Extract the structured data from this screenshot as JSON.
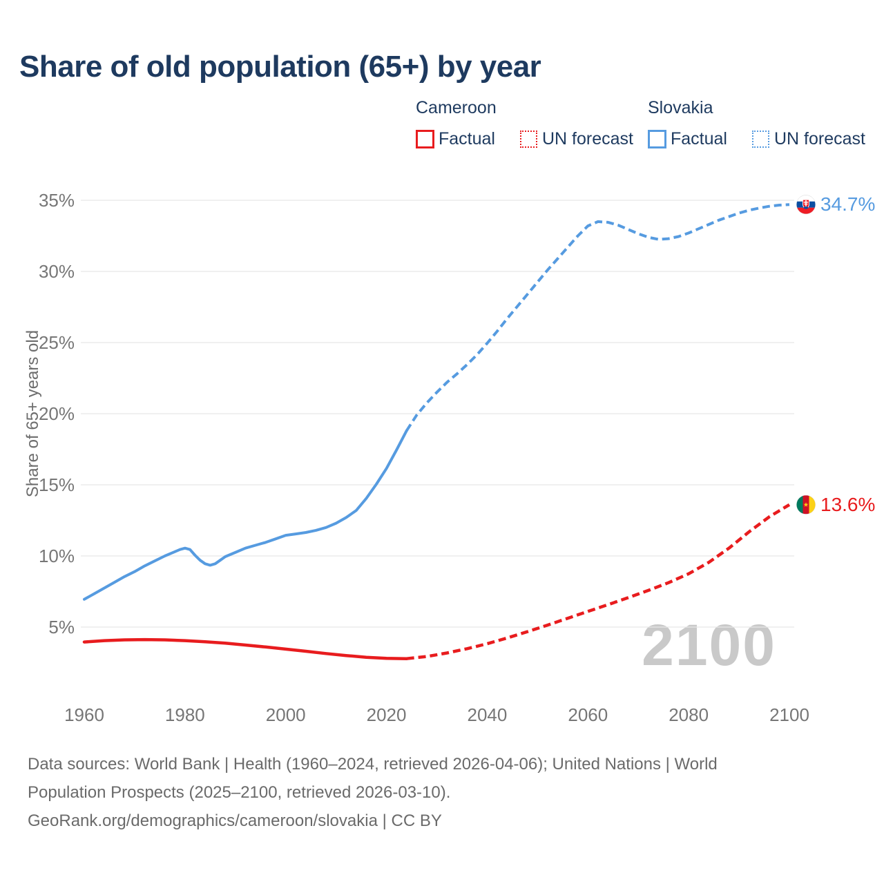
{
  "title": "Share of old population (65+) by year",
  "colors": {
    "navy": "#1e3a5f",
    "cameroon": "#e81c1e",
    "slovakia": "#569be0",
    "gridline": "#e8e8e8",
    "watermark": "#c9c9c9",
    "flag_slovakia": {
      "white": "#ffffff",
      "blue": "#0b4ea2",
      "red": "#ee1c25"
    },
    "flag_cameroon": {
      "green": "#007a5e",
      "red": "#ce1126",
      "yellow": "#fcd116"
    }
  },
  "legend": {
    "groups": [
      {
        "country": "Cameroon",
        "items": [
          {
            "label": "Factual",
            "style": "solid"
          },
          {
            "label": "UN forecast",
            "style": "dotted"
          }
        ]
      },
      {
        "country": "Slovakia",
        "items": [
          {
            "label": "Factual",
            "style": "solid"
          },
          {
            "label": "UN forecast",
            "style": "dotted"
          }
        ]
      }
    ]
  },
  "chart_data": {
    "type": "line",
    "title": "Share of old population (65+) by year",
    "xlabel": "",
    "ylabel": "Share of 65+ years old",
    "x_ticks": [
      1960,
      1980,
      2000,
      2020,
      2040,
      2060,
      2080,
      2100
    ],
    "y_ticks": [
      {
        "value": 5,
        "label": "5%"
      },
      {
        "value": 10,
        "label": "10%"
      },
      {
        "value": 15,
        "label": "15%"
      },
      {
        "value": 20,
        "label": "20%"
      },
      {
        "value": 25,
        "label": "25%"
      },
      {
        "value": 30,
        "label": "30%"
      },
      {
        "value": 35,
        "label": "35%"
      }
    ],
    "xlim": [
      1955,
      2105
    ],
    "ylim": [
      2.5,
      36
    ],
    "grid": "horizontal",
    "legend_position": "top-right",
    "watermark": "2100",
    "series": [
      {
        "name": "Cameroon Factual",
        "country": "cameroon",
        "dash": false,
        "points": [
          [
            1960,
            3.95
          ],
          [
            1964,
            4.05
          ],
          [
            1968,
            4.1
          ],
          [
            1972,
            4.12
          ],
          [
            1976,
            4.1
          ],
          [
            1980,
            4.05
          ],
          [
            1984,
            3.97
          ],
          [
            1988,
            3.87
          ],
          [
            1992,
            3.74
          ],
          [
            1996,
            3.6
          ],
          [
            2000,
            3.45
          ],
          [
            2004,
            3.3
          ],
          [
            2008,
            3.14
          ],
          [
            2012,
            3.0
          ],
          [
            2016,
            2.88
          ],
          [
            2020,
            2.8
          ],
          [
            2024,
            2.78
          ]
        ]
      },
      {
        "name": "Cameroon UN forecast",
        "country": "cameroon",
        "dash": true,
        "points": [
          [
            2024,
            2.78
          ],
          [
            2028,
            2.93
          ],
          [
            2032,
            3.18
          ],
          [
            2036,
            3.48
          ],
          [
            2040,
            3.83
          ],
          [
            2044,
            4.24
          ],
          [
            2048,
            4.68
          ],
          [
            2052,
            5.14
          ],
          [
            2056,
            5.62
          ],
          [
            2060,
            6.1
          ],
          [
            2064,
            6.58
          ],
          [
            2068,
            7.07
          ],
          [
            2072,
            7.58
          ],
          [
            2076,
            8.12
          ],
          [
            2080,
            8.75
          ],
          [
            2084,
            9.55
          ],
          [
            2088,
            10.55
          ],
          [
            2092,
            11.7
          ],
          [
            2096,
            12.75
          ],
          [
            2100,
            13.6
          ]
        ]
      },
      {
        "name": "Slovakia Factual",
        "country": "slovakia",
        "dash": false,
        "points": [
          [
            1960,
            6.95
          ],
          [
            1962,
            7.35
          ],
          [
            1964,
            7.75
          ],
          [
            1966,
            8.15
          ],
          [
            1968,
            8.55
          ],
          [
            1970,
            8.9
          ],
          [
            1972,
            9.3
          ],
          [
            1974,
            9.65
          ],
          [
            1976,
            10.0
          ],
          [
            1978,
            10.3
          ],
          [
            1979,
            10.45
          ],
          [
            1980,
            10.55
          ],
          [
            1981,
            10.45
          ],
          [
            1982,
            10.05
          ],
          [
            1983,
            9.7
          ],
          [
            1984,
            9.45
          ],
          [
            1985,
            9.35
          ],
          [
            1986,
            9.45
          ],
          [
            1987,
            9.7
          ],
          [
            1988,
            9.95
          ],
          [
            1990,
            10.25
          ],
          [
            1992,
            10.55
          ],
          [
            1994,
            10.75
          ],
          [
            1996,
            10.95
          ],
          [
            1998,
            11.2
          ],
          [
            2000,
            11.45
          ],
          [
            2002,
            11.55
          ],
          [
            2004,
            11.65
          ],
          [
            2006,
            11.8
          ],
          [
            2008,
            12.0
          ],
          [
            2010,
            12.3
          ],
          [
            2012,
            12.7
          ],
          [
            2014,
            13.2
          ],
          [
            2016,
            14.05
          ],
          [
            2018,
            15.05
          ],
          [
            2020,
            16.15
          ],
          [
            2022,
            17.45
          ],
          [
            2024,
            18.8
          ]
        ]
      },
      {
        "name": "Slovakia UN forecast",
        "country": "slovakia",
        "dash": true,
        "points": [
          [
            2024,
            18.8
          ],
          [
            2026,
            19.9
          ],
          [
            2028,
            20.75
          ],
          [
            2030,
            21.5
          ],
          [
            2032,
            22.2
          ],
          [
            2034,
            22.8
          ],
          [
            2036,
            23.45
          ],
          [
            2038,
            24.15
          ],
          [
            2040,
            24.95
          ],
          [
            2042,
            25.8
          ],
          [
            2044,
            26.7
          ],
          [
            2046,
            27.55
          ],
          [
            2048,
            28.4
          ],
          [
            2050,
            29.25
          ],
          [
            2052,
            30.1
          ],
          [
            2054,
            30.9
          ],
          [
            2056,
            31.7
          ],
          [
            2058,
            32.5
          ],
          [
            2060,
            33.2
          ],
          [
            2062,
            33.5
          ],
          [
            2064,
            33.45
          ],
          [
            2066,
            33.25
          ],
          [
            2068,
            32.95
          ],
          [
            2070,
            32.65
          ],
          [
            2072,
            32.4
          ],
          [
            2074,
            32.25
          ],
          [
            2076,
            32.3
          ],
          [
            2078,
            32.45
          ],
          [
            2080,
            32.7
          ],
          [
            2082,
            33.0
          ],
          [
            2084,
            33.3
          ],
          [
            2086,
            33.6
          ],
          [
            2088,
            33.85
          ],
          [
            2090,
            34.1
          ],
          [
            2092,
            34.3
          ],
          [
            2094,
            34.45
          ],
          [
            2096,
            34.58
          ],
          [
            2098,
            34.66
          ],
          [
            2100,
            34.7
          ]
        ]
      }
    ],
    "end_labels": [
      {
        "text": "34.7%",
        "country": "slovakia",
        "series_index": 3
      },
      {
        "text": "13.6%",
        "country": "cameroon",
        "series_index": 1
      }
    ]
  },
  "footer": {
    "lines": [
      "Data sources: World Bank | Health (1960–2024, retrieved 2026-04-06); United Nations | World",
      "Population Prospects (2025–2100, retrieved 2026-03-10).",
      "GeoRank.org/demographics/cameroon/slovakia | CC BY"
    ]
  }
}
